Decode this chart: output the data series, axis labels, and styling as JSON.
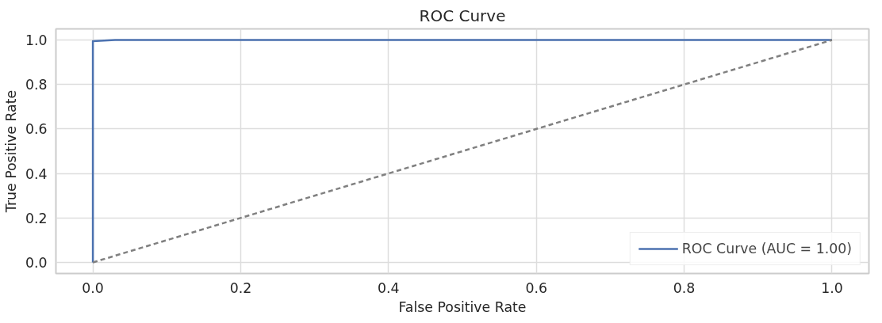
{
  "chart_data": {
    "type": "line",
    "title": "ROC Curve",
    "xlabel": "False Positive Rate",
    "ylabel": "True Positive Rate",
    "xlim": [
      -0.05,
      1.05
    ],
    "ylim": [
      -0.05,
      1.05
    ],
    "xticks": [
      {
        "value": 0,
        "label": "0.0"
      },
      0.2,
      0.4,
      0.6,
      0.8,
      {
        "value": 1,
        "label": "1.0"
      }
    ],
    "yticks": [
      {
        "value": 0,
        "label": "0.0"
      },
      0.2,
      0.4,
      0.6,
      0.8,
      {
        "value": 1,
        "label": "1.0"
      }
    ],
    "series": [
      {
        "name": "ROC Curve (AUC = 1.00)",
        "color": "#4c72b0",
        "x": [
          0,
          0,
          0.03,
          1
        ],
        "values": [
          0,
          0.995,
          1,
          1
        ],
        "line_style": "solid"
      },
      {
        "color": "#808080",
        "x": [
          0,
          1
        ],
        "values": [
          0,
          1
        ],
        "line_style": "dashed"
      }
    ],
    "grid": true,
    "legend": "bottom right",
    "marker": "none"
  }
}
